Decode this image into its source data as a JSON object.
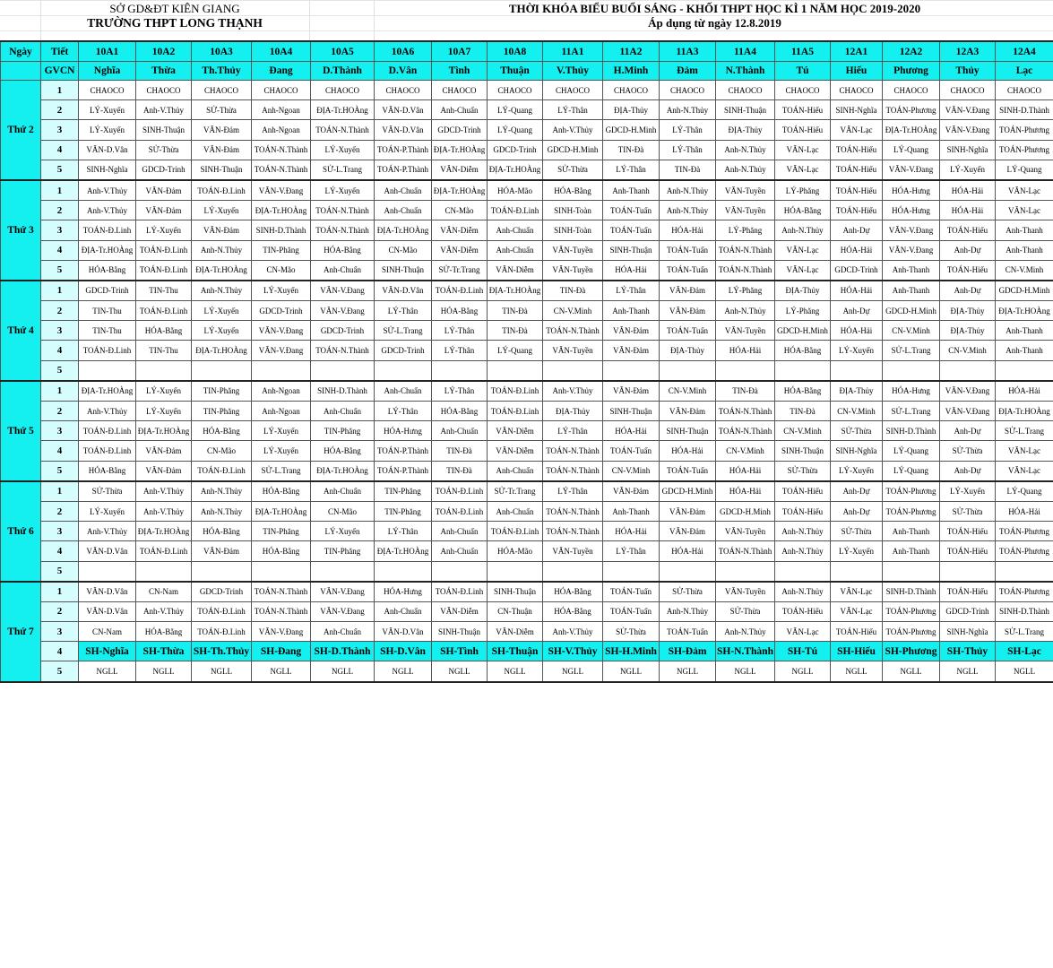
{
  "header": {
    "department": "SỞ GD&ĐT KIÊN GIANG",
    "school": "TRƯỜNG THPT LONG THẠNH",
    "title": "THỜI KHÓA BIỂU BUỔI SÁNG - KHỐI THPT HỌC KÌ 1 NĂM HỌC 2019-2020",
    "subtitle": "Áp dụng từ ngày 12.8.2019"
  },
  "colors": {
    "header_bg": "#14f0f0",
    "period_bg": "#d6fdfd"
  },
  "table": {
    "day_label": "Ngày",
    "period_label": "Tiết",
    "gvcn_label": "GVCN",
    "classes": [
      "10A1",
      "10A2",
      "10A3",
      "10A4",
      "10A5",
      "10A6",
      "10A7",
      "10A8",
      "11A1",
      "11A2",
      "11A3",
      "11A4",
      "11A5",
      "12A1",
      "12A2",
      "12A3",
      "12A4"
    ],
    "gvcn": [
      "Nghĩa",
      "Thừa",
      "Th.Thủy",
      "Đang",
      "D.Thành",
      "D.Vân",
      "Tình",
      "Thuận",
      "V.Thủy",
      "H.Minh",
      "Đảm",
      "N.Thành",
      "Tú",
      "Hiếu",
      "Phương",
      "Thủy",
      "Lạc"
    ],
    "days": [
      {
        "name": "Thứ 2",
        "periods": [
          {
            "no": "1",
            "cells": [
              "CHAOCO",
              "CHAOCO",
              "CHAOCO",
              "CHAOCO",
              "CHAOCO",
              "CHAOCO",
              "CHAOCO",
              "CHAOCO",
              "CHAOCO",
              "CHAOCO",
              "CHAOCO",
              "CHAOCO",
              "CHAOCO",
              "CHAOCO",
              "CHAOCO",
              "CHAOCO",
              "CHAOCO"
            ]
          },
          {
            "no": "2",
            "cells": [
              "LÝ-Xuyến",
              "Anh-V.Thủy",
              "SỬ-Thừa",
              "Anh-Ngoan",
              "ĐỊA-Tr.HOÀng",
              "VĂN-D.Vân",
              "Anh-Chuẩn",
              "LÝ-Quang",
              "LÝ-Thân",
              "ĐỊA-Thủy",
              "Anh-N.Thủy",
              "SINH-Thuận",
              "TOÁN-Hiếu",
              "SINH-Nghĩa",
              "TOÁN-Phương",
              "VĂN-V.Đang",
              "SINH-D.Thành"
            ]
          },
          {
            "no": "3",
            "cells": [
              "LÝ-Xuyến",
              "SINH-Thuận",
              "VĂN-Đảm",
              "Anh-Ngoan",
              "TOÁN-N.Thành",
              "VĂN-D.Vân",
              "GDCD-Trinh",
              "LÝ-Quang",
              "Anh-V.Thủy",
              "GDCD-H.Minh",
              "LÝ-Thân",
              "ĐỊA-Thủy",
              "TOÁN-Hiếu",
              "VĂN-Lạc",
              "ĐỊA-Tr.HOÀng",
              "VĂN-V.Đang",
              "TOÁN-Phương"
            ]
          },
          {
            "no": "4",
            "cells": [
              "VĂN-D.Vân",
              "SỬ-Thừa",
              "VĂN-Đảm",
              "TOÁN-N.Thành",
              "LÝ-Xuyến",
              "TOÁN-P.Thành",
              "ĐỊA-Tr.HOÀng",
              "GDCD-Trinh",
              "GDCD-H.Minh",
              "TIN-Đà",
              "LÝ-Thân",
              "Anh-N.Thủy",
              "VĂN-Lạc",
              "TOÁN-Hiếu",
              "LÝ-Quang",
              "SINH-Nghĩa",
              "TOÁN-Phương"
            ]
          },
          {
            "no": "5",
            "cells": [
              "SINH-Nghĩa",
              "GDCD-Trinh",
              "SINH-Thuận",
              "TOÁN-N.Thành",
              "SỬ-L.Trang",
              "TOÁN-P.Thành",
              "VĂN-Diễm",
              "ĐỊA-Tr.HOÀng",
              "SỬ-Thừa",
              "LÝ-Thân",
              "TIN-Đà",
              "Anh-N.Thủy",
              "VĂN-Lạc",
              "TOÁN-Hiếu",
              "VĂN-V.Đang",
              "LÝ-Xuyến",
              "LÝ-Quang"
            ]
          }
        ]
      },
      {
        "name": "Thứ 3",
        "periods": [
          {
            "no": "1",
            "cells": [
              "Anh-V.Thủy",
              "VĂN-Đảm",
              "TOÁN-Đ.Linh",
              "VĂN-V.Đang",
              "LÝ-Xuyến",
              "Anh-Chuẩn",
              "ĐỊA-Tr.HOÀng",
              "HÓA-Mão",
              "HÓA-Bằng",
              "Anh-Thanh",
              "Anh-N.Thủy",
              "VĂN-Tuyền",
              "LÝ-Phăng",
              "TOÁN-Hiếu",
              "HÓA-Hưng",
              "HÓA-Hải",
              "VĂN-Lạc"
            ]
          },
          {
            "no": "2",
            "cells": [
              "Anh-V.Thủy",
              "VĂN-Đảm",
              "LÝ-Xuyến",
              "ĐỊA-Tr.HOÀng",
              "TOÁN-N.Thành",
              "Anh-Chuẩn",
              "CN-Mão",
              "TOÁN-Đ.Linh",
              "SINH-Toàn",
              "TOÁN-Tuấn",
              "Anh-N.Thủy",
              "VĂN-Tuyền",
              "HÓA-Bằng",
              "TOÁN-Hiếu",
              "HÓA-Hưng",
              "HÓA-Hải",
              "VĂN-Lạc"
            ]
          },
          {
            "no": "3",
            "cells": [
              "TOÁN-Đ.Linh",
              "LÝ-Xuyến",
              "VĂN-Đảm",
              "SINH-D.Thành",
              "TOÁN-N.Thành",
              "ĐỊA-Tr.HOÀng",
              "VĂN-Diễm",
              "Anh-Chuẩn",
              "SINH-Toàn",
              "TOÁN-Tuấn",
              "HÓA-Hải",
              "LÝ-Phăng",
              "Anh-N.Thủy",
              "Anh-Dự",
              "VĂN-V.Đang",
              "TOÁN-Hiếu",
              "Anh-Thanh"
            ]
          },
          {
            "no": "4",
            "cells": [
              "ĐỊA-Tr.HOÀng",
              "TOÁN-Đ.Linh",
              "Anh-N.Thủy",
              "TIN-Phăng",
              "HÓA-Bằng",
              "CN-Mão",
              "VĂN-Diễm",
              "Anh-Chuẩn",
              "VĂN-Tuyền",
              "SINH-Thuận",
              "TOÁN-Tuấn",
              "TOÁN-N.Thành",
              "VĂN-Lạc",
              "HÓA-Hải",
              "VĂN-V.Đang",
              "Anh-Dự",
              "Anh-Thanh"
            ]
          },
          {
            "no": "5",
            "cells": [
              "HÓA-Bằng",
              "TOÁN-Đ.Linh",
              "ĐỊA-Tr.HOÀng",
              "CN-Mão",
              "Anh-Chuẩn",
              "SINH-Thuận",
              "SỬ-Tr.Trang",
              "VĂN-Diễm",
              "VĂN-Tuyền",
              "HÓA-Hải",
              "TOÁN-Tuấn",
              "TOÁN-N.Thành",
              "VĂN-Lạc",
              "GDCD-Trinh",
              "Anh-Thanh",
              "TOÁN-Hiếu",
              "CN-V.Minh"
            ]
          }
        ]
      },
      {
        "name": "Thứ 4",
        "periods": [
          {
            "no": "1",
            "cells": [
              "GDCD-Trinh",
              "TIN-Thu",
              "Anh-N.Thủy",
              "LÝ-Xuyến",
              "VĂN-V.Đang",
              "VĂN-D.Vân",
              "TOÁN-Đ.Linh",
              "ĐỊA-Tr.HOÀng",
              "TIN-Đà",
              "LÝ-Thân",
              "VĂN-Đảm",
              "LÝ-Phăng",
              "ĐỊA-Thủy",
              "HÓA-Hải",
              "Anh-Thanh",
              "Anh-Dự",
              "GDCD-H.Minh"
            ]
          },
          {
            "no": "2",
            "cells": [
              "TIN-Thu",
              "TOÁN-Đ.Linh",
              "LÝ-Xuyến",
              "GDCD-Trinh",
              "VĂN-V.Đang",
              "LÝ-Thân",
              "HÓA-Bằng",
              "TIN-Đà",
              "CN-V.Minh",
              "Anh-Thanh",
              "VĂN-Đảm",
              "Anh-N.Thủy",
              "LÝ-Phăng",
              "Anh-Dự",
              "GDCD-H.Minh",
              "ĐỊA-Thủy",
              "ĐỊA-Tr.HOÀng"
            ]
          },
          {
            "no": "3",
            "cells": [
              "TIN-Thu",
              "HÓA-Bằng",
              "LÝ-Xuyến",
              "VĂN-V.Đang",
              "GDCD-Trinh",
              "SỬ-L.Trang",
              "LÝ-Thân",
              "TIN-Đà",
              "TOÁN-N.Thành",
              "VĂN-Đảm",
              "TOÁN-Tuấn",
              "VĂN-Tuyền",
              "GDCD-H.Minh",
              "HÓA-Hải",
              "CN-V.Minh",
              "ĐỊA-Thủy",
              "Anh-Thanh"
            ]
          },
          {
            "no": "4",
            "cells": [
              "TOÁN-Đ.Linh",
              "TIN-Thu",
              "ĐỊA-Tr.HOÀng",
              "VĂN-V.Đang",
              "TOÁN-N.Thành",
              "GDCD-Trinh",
              "LÝ-Thân",
              "LÝ-Quang",
              "VĂN-Tuyền",
              "VĂN-Đảm",
              "ĐỊA-Thủy",
              "HÓA-Hải",
              "HÓA-Bằng",
              "LÝ-Xuyến",
              "SỬ-L.Trang",
              "CN-V.Minh",
              "Anh-Thanh"
            ]
          },
          {
            "no": "5",
            "cells": [
              "",
              "",
              "",
              "",
              "",
              "",
              "",
              "",
              "",
              "",
              "",
              "",
              "",
              "",
              "",
              "",
              ""
            ]
          }
        ]
      },
      {
        "name": "Thứ 5",
        "periods": [
          {
            "no": "1",
            "cells": [
              "ĐỊA-Tr.HOÀng",
              "LÝ-Xuyến",
              "TIN-Phăng",
              "Anh-Ngoan",
              "SINH-D.Thành",
              "Anh-Chuẩn",
              "LÝ-Thân",
              "TOÁN-Đ.Linh",
              "Anh-V.Thủy",
              "VĂN-Đảm",
              "CN-V.Minh",
              "TIN-Đà",
              "HÓA-Bằng",
              "ĐỊA-Thủy",
              "HÓA-Hưng",
              "VĂN-V.Đang",
              "HÓA-Hải"
            ]
          },
          {
            "no": "2",
            "cells": [
              "Anh-V.Thủy",
              "LÝ-Xuyến",
              "TIN-Phăng",
              "Anh-Ngoan",
              "Anh-Chuẩn",
              "LÝ-Thân",
              "HÓA-Bằng",
              "TOÁN-Đ.Linh",
              "ĐỊA-Thủy",
              "SINH-Thuận",
              "VĂN-Đảm",
              "TOÁN-N.Thành",
              "TIN-Đà",
              "CN-V.Minh",
              "SỬ-L.Trang",
              "VĂN-V.Đang",
              "ĐỊA-Tr.HOÀng"
            ]
          },
          {
            "no": "3",
            "cells": [
              "TOÁN-Đ.Linh",
              "ĐỊA-Tr.HOÀng",
              "HÓA-Bằng",
              "LÝ-Xuyến",
              "TIN-Phăng",
              "HÓA-Hưng",
              "Anh-Chuẩn",
              "VĂN-Diễm",
              "LÝ-Thân",
              "HÓA-Hải",
              "SINH-Thuận",
              "TOÁN-N.Thành",
              "CN-V.Minh",
              "SỬ-Thừa",
              "SINH-D.Thành",
              "Anh-Dự",
              "SỬ-L.Trang"
            ]
          },
          {
            "no": "4",
            "cells": [
              "TOÁN-Đ.Linh",
              "VĂN-Đảm",
              "CN-Mão",
              "LÝ-Xuyến",
              "HÓA-Bằng",
              "TOÁN-P.Thành",
              "TIN-Đà",
              "VĂN-Diễm",
              "TOÁN-N.Thành",
              "TOÁN-Tuấn",
              "HÓA-Hải",
              "CN-V.Minh",
              "SINH-Thuận",
              "SINH-Nghĩa",
              "LÝ-Quang",
              "SỬ-Thừa",
              "VĂN-Lạc"
            ]
          },
          {
            "no": "5",
            "cells": [
              "HÓA-Bằng",
              "VĂN-Đảm",
              "TOÁN-Đ.Linh",
              "SỬ-L.Trang",
              "ĐỊA-Tr.HOÀng",
              "TOÁN-P.Thành",
              "TIN-Đà",
              "Anh-Chuẩn",
              "TOÁN-N.Thành",
              "CN-V.Minh",
              "TOÁN-Tuấn",
              "HÓA-Hải",
              "SỬ-Thừa",
              "LÝ-Xuyến",
              "LÝ-Quang",
              "Anh-Dự",
              "VĂN-Lạc"
            ]
          }
        ]
      },
      {
        "name": "Thứ 6",
        "periods": [
          {
            "no": "1",
            "cells": [
              "SỬ-Thừa",
              "Anh-V.Thủy",
              "Anh-N.Thủy",
              "HÓA-Bằng",
              "Anh-Chuẩn",
              "TIN-Phăng",
              "TOÁN-Đ.Linh",
              "SỬ-Tr.Trang",
              "LÝ-Thân",
              "VĂN-Đảm",
              "GDCD-H.Minh",
              "HÓA-Hải",
              "TOÁN-Hiếu",
              "Anh-Dự",
              "TOÁN-Phương",
              "LÝ-Xuyến",
              "LÝ-Quang"
            ]
          },
          {
            "no": "2",
            "cells": [
              "LÝ-Xuyến",
              "Anh-V.Thủy",
              "Anh-N.Thủy",
              "ĐỊA-Tr.HOÀng",
              "CN-Mão",
              "TIN-Phăng",
              "TOÁN-Đ.Linh",
              "Anh-Chuẩn",
              "TOÁN-N.Thành",
              "Anh-Thanh",
              "VĂN-Đảm",
              "GDCD-H.Minh",
              "TOÁN-Hiếu",
              "Anh-Dự",
              "TOÁN-Phương",
              "SỬ-Thừa",
              "HÓA-Hải"
            ]
          },
          {
            "no": "3",
            "cells": [
              "Anh-V.Thủy",
              "ĐỊA-Tr.HOÀng",
              "HÓA-Bằng",
              "TIN-Phăng",
              "LÝ-Xuyến",
              "LÝ-Thân",
              "Anh-Chuẩn",
              "TOÁN-Đ.Linh",
              "TOÁN-N.Thành",
              "HÓA-Hải",
              "VĂN-Đảm",
              "VĂN-Tuyền",
              "Anh-N.Thủy",
              "SỬ-Thừa",
              "Anh-Thanh",
              "TOÁN-Hiếu",
              "TOÁN-Phương"
            ]
          },
          {
            "no": "4",
            "cells": [
              "VĂN-D.Vân",
              "TOÁN-Đ.Linh",
              "VĂN-Đảm",
              "HÓA-Bằng",
              "TIN-Phăng",
              "ĐỊA-Tr.HOÀng",
              "Anh-Chuẩn",
              "HÓA-Mão",
              "VĂN-Tuyền",
              "LÝ-Thân",
              "HÓA-Hải",
              "TOÁN-N.Thành",
              "Anh-N.Thủy",
              "LÝ-Xuyến",
              "Anh-Thanh",
              "TOÁN-Hiếu",
              "TOÁN-Phương"
            ]
          },
          {
            "no": "5",
            "cells": [
              "",
              "",
              "",
              "",
              "",
              "",
              "",
              "",
              "",
              "",
              "",
              "",
              "",
              "",
              "",
              "",
              ""
            ]
          }
        ]
      },
      {
        "name": "Thứ 7",
        "periods": [
          {
            "no": "1",
            "cells": [
              "VĂN-D.Vân",
              "CN-Nam",
              "GDCD-Trinh",
              "TOÁN-N.Thành",
              "VĂN-V.Đang",
              "HÓA-Hưng",
              "TOÁN-Đ.Linh",
              "SINH-Thuận",
              "HÓA-Bằng",
              "TOÁN-Tuấn",
              "SỬ-Thừa",
              "VĂN-Tuyền",
              "Anh-N.Thủy",
              "VĂN-Lạc",
              "SINH-D.Thành",
              "TOÁN-Hiếu",
              "TOÁN-Phương"
            ]
          },
          {
            "no": "2",
            "cells": [
              "VĂN-D.Vân",
              "Anh-V.Thủy",
              "TOÁN-Đ.Linh",
              "TOÁN-N.Thành",
              "VĂN-V.Đang",
              "Anh-Chuẩn",
              "VĂN-Diễm",
              "CN-Thuận",
              "HÓA-Bằng",
              "TOÁN-Tuấn",
              "Anh-N.Thủy",
              "SỬ-Thừa",
              "TOÁN-Hiếu",
              "VĂN-Lạc",
              "TOÁN-Phương",
              "GDCD-Trinh",
              "SINH-D.Thành"
            ]
          },
          {
            "no": "3",
            "cells": [
              "CN-Nam",
              "HÓA-Bằng",
              "TOÁN-Đ.Linh",
              "VĂN-V.Đang",
              "Anh-Chuẩn",
              "VĂN-D.Vân",
              "SINH-Thuận",
              "VĂN-Diễm",
              "Anh-V.Thủy",
              "SỬ-Thừa",
              "TOÁN-Tuấn",
              "Anh-N.Thủy",
              "VĂN-Lạc",
              "TOÁN-Hiếu",
              "TOÁN-Phương",
              "SINH-Nghĩa",
              "SỬ-L.Trang"
            ]
          },
          {
            "no": "4",
            "highlight": true,
            "cells": [
              "SH-Nghĩa",
              "SH-Thừa",
              "SH-Th.Thủy",
              "SH-Đang",
              "SH-D.Thành",
              "SH-D.Vân",
              "SH-Tình",
              "SH-Thuận",
              "SH-V.Thủy",
              "SH-H.Minh",
              "SH-Đảm",
              "SH-N.Thành",
              "SH-Tú",
              "SH-Hiếu",
              "SH-Phương",
              "SH-Thủy",
              "SH-Lạc"
            ]
          },
          {
            "no": "5",
            "cells": [
              "NGLL",
              "NGLL",
              "NGLL",
              "NGLL",
              "NGLL",
              "NGLL",
              "NGLL",
              "NGLL",
              "NGLL",
              "NGLL",
              "NGLL",
              "NGLL",
              "NGLL",
              "NGLL",
              "NGLL",
              "NGLL",
              "NGLL"
            ]
          }
        ]
      }
    ]
  }
}
